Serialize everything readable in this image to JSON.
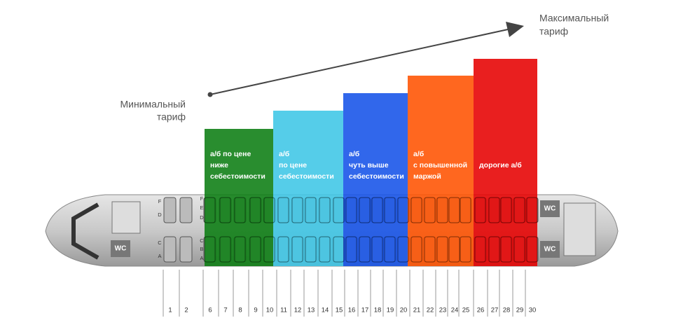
{
  "labels": {
    "min": [
      "Минимальный",
      "тариф"
    ],
    "max": [
      "Максимальный",
      "тариф"
    ]
  },
  "zones": [
    {
      "lines": [
        "а/б по цене",
        "ниже",
        "себестоимости"
      ]
    },
    {
      "lines": [
        "а/б",
        "по цене",
        "себестоимости"
      ]
    },
    {
      "lines": [
        "а/б",
        "чуть выше",
        "себестоимости"
      ]
    },
    {
      "lines": [
        "а/б",
        "с повышенной",
        "маржой"
      ]
    },
    {
      "lines": [
        "дорогие а/б"
      ]
    }
  ],
  "rows": [
    "1",
    "2",
    "6",
    "7",
    "8",
    "9",
    "10",
    "11",
    "12",
    "13",
    "14",
    "15",
    "16",
    "17",
    "18",
    "19",
    "20",
    "21",
    "22",
    "23",
    "24",
    "25",
    "26",
    "27",
    "28",
    "29",
    "30"
  ],
  "letters_front": [
    "F",
    "D",
    "C",
    "A"
  ],
  "letters_mid": [
    "F",
    "E",
    "D",
    "C",
    "B",
    "A"
  ],
  "wc": [
    "WC",
    "WC",
    "WC"
  ]
}
